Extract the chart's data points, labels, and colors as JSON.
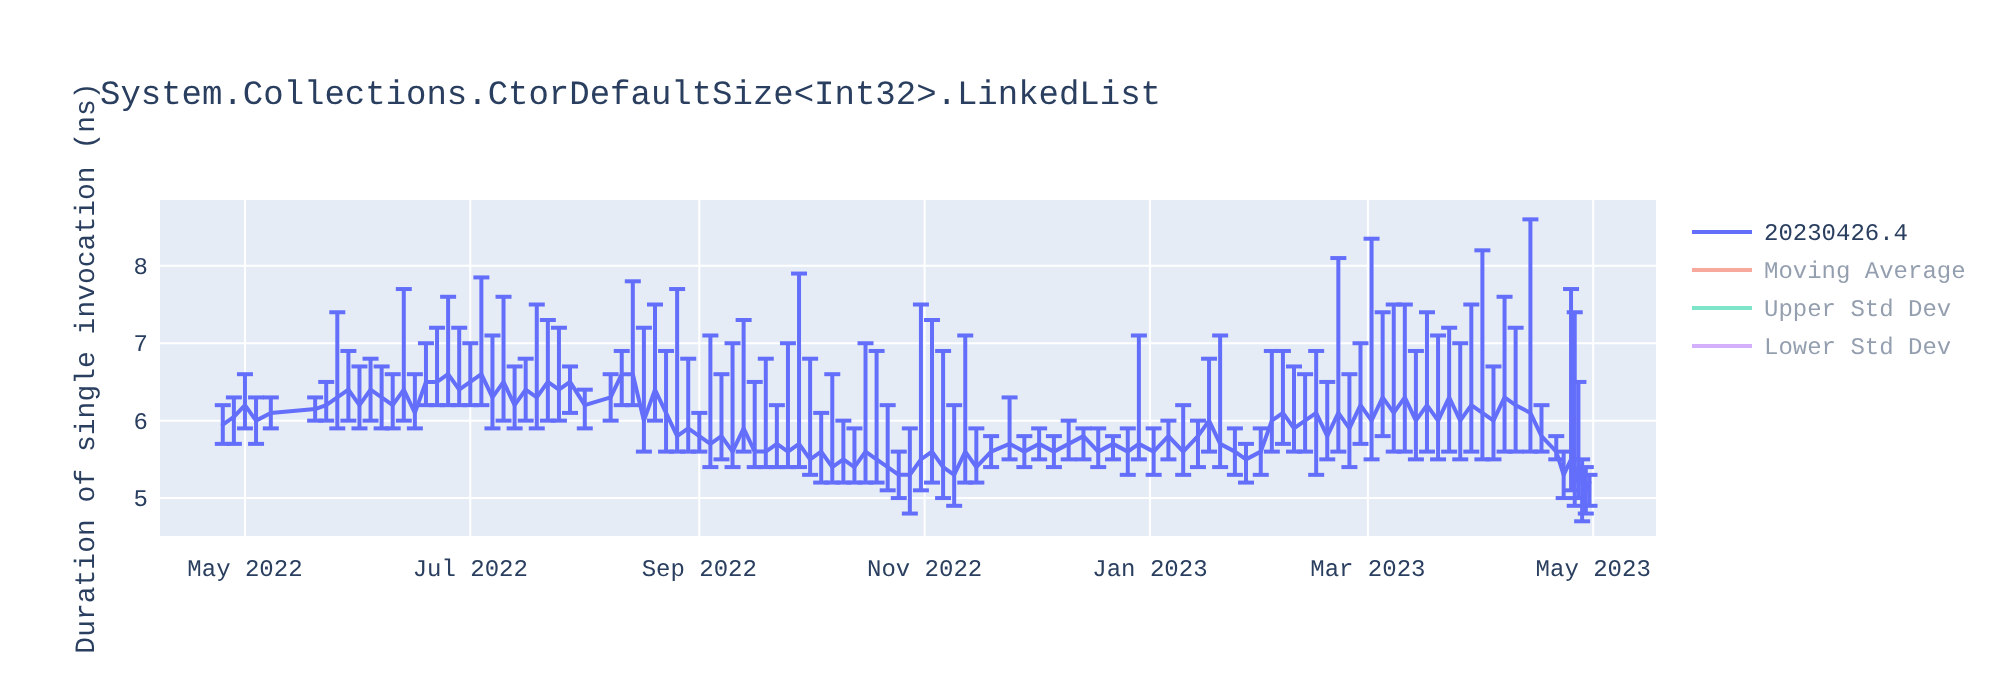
{
  "chart_data": {
    "type": "line",
    "title": "System.Collections.CtorDefaultSize<Int32>.LinkedList",
    "ylabel": "Duration of single invocation (ns)",
    "x": [
      "2022-04-25",
      "2022-04-28",
      "2022-05-01",
      "2022-05-04",
      "2022-05-08",
      "2022-05-20",
      "2022-05-23",
      "2022-05-26",
      "2022-05-29",
      "2022-06-01",
      "2022-06-04",
      "2022-06-07",
      "2022-06-10",
      "2022-06-13",
      "2022-06-16",
      "2022-06-19",
      "2022-06-22",
      "2022-06-25",
      "2022-06-28",
      "2022-07-01",
      "2022-07-04",
      "2022-07-07",
      "2022-07-10",
      "2022-07-13",
      "2022-07-16",
      "2022-07-19",
      "2022-07-22",
      "2022-07-25",
      "2022-07-28",
      "2022-08-01",
      "2022-08-08",
      "2022-08-11",
      "2022-08-14",
      "2022-08-17",
      "2022-08-20",
      "2022-08-23",
      "2022-08-26",
      "2022-08-29",
      "2022-09-01",
      "2022-09-04",
      "2022-09-07",
      "2022-09-10",
      "2022-09-13",
      "2022-09-16",
      "2022-09-19",
      "2022-09-22",
      "2022-09-25",
      "2022-09-28",
      "2022-10-01",
      "2022-10-04",
      "2022-10-07",
      "2022-10-10",
      "2022-10-13",
      "2022-10-16",
      "2022-10-19",
      "2022-10-22",
      "2022-10-25",
      "2022-10-28",
      "2022-10-31",
      "2022-11-03",
      "2022-11-06",
      "2022-11-09",
      "2022-11-12",
      "2022-11-15",
      "2022-11-19",
      "2022-11-24",
      "2022-11-28",
      "2022-12-02",
      "2022-12-06",
      "2022-12-10",
      "2022-12-14",
      "2022-12-18",
      "2022-12-22",
      "2022-12-26",
      "2022-12-29",
      "2023-01-02",
      "2023-01-06",
      "2023-01-10",
      "2023-01-14",
      "2023-01-17",
      "2023-01-20",
      "2023-01-24",
      "2023-01-27",
      "2023-01-31",
      "2023-02-03",
      "2023-02-06",
      "2023-02-09",
      "2023-02-12",
      "2023-02-15",
      "2023-02-18",
      "2023-02-21",
      "2023-02-24",
      "2023-02-27",
      "2023-03-02",
      "2023-03-05",
      "2023-03-08",
      "2023-03-11",
      "2023-03-14",
      "2023-03-17",
      "2023-03-20",
      "2023-03-23",
      "2023-03-26",
      "2023-03-29",
      "2023-04-01",
      "2023-04-04",
      "2023-04-07",
      "2023-04-10",
      "2023-04-14",
      "2023-04-17",
      "2023-04-21",
      "2023-04-23",
      "2023-04-25",
      "2023-04-26",
      "2023-04-27",
      "2023-04-28",
      "2023-04-29",
      "2023-04-30"
    ],
    "series": [
      {
        "name": "20230426.4",
        "color": "#636efa",
        "values": [
          5.95,
          6.05,
          6.2,
          6.0,
          6.1,
          6.15,
          6.2,
          6.3,
          6.4,
          6.2,
          6.4,
          6.3,
          6.2,
          6.4,
          6.1,
          6.5,
          6.5,
          6.6,
          6.4,
          6.5,
          6.6,
          6.3,
          6.5,
          6.2,
          6.4,
          6.3,
          6.5,
          6.4,
          6.5,
          6.2,
          6.3,
          6.6,
          6.6,
          6.0,
          6.4,
          6.1,
          5.8,
          5.9,
          5.8,
          5.7,
          5.8,
          5.6,
          5.9,
          5.6,
          5.6,
          5.7,
          5.6,
          5.7,
          5.5,
          5.6,
          5.4,
          5.5,
          5.4,
          5.6,
          5.5,
          5.4,
          5.3,
          5.3,
          5.5,
          5.6,
          5.4,
          5.3,
          5.6,
          5.4,
          5.6,
          5.7,
          5.6,
          5.7,
          5.6,
          5.7,
          5.8,
          5.6,
          5.7,
          5.6,
          5.7,
          5.6,
          5.8,
          5.6,
          5.8,
          6.0,
          5.7,
          5.6,
          5.5,
          5.6,
          6.0,
          6.1,
          5.9,
          6.0,
          6.1,
          5.8,
          6.1,
          5.9,
          6.2,
          6.0,
          6.3,
          6.1,
          6.3,
          6.0,
          6.2,
          6.0,
          6.3,
          6.0,
          6.2,
          6.1,
          6.0,
          6.3,
          6.2,
          6.1,
          5.8,
          5.6,
          5.3,
          5.5,
          5.2,
          5.4,
          5.2,
          5.1,
          5.2
        ],
        "errors": [
          [
            5.7,
            6.2
          ],
          [
            5.7,
            6.3
          ],
          [
            5.9,
            6.6
          ],
          [
            5.7,
            6.3
          ],
          [
            5.9,
            6.3
          ],
          [
            6.0,
            6.3
          ],
          [
            6.0,
            6.5
          ],
          [
            5.9,
            7.4
          ],
          [
            6.0,
            6.9
          ],
          [
            5.9,
            6.7
          ],
          [
            6.0,
            6.8
          ],
          [
            5.9,
            6.7
          ],
          [
            5.9,
            6.6
          ],
          [
            6.0,
            7.7
          ],
          [
            5.9,
            6.6
          ],
          [
            6.2,
            7.0
          ],
          [
            6.2,
            7.2
          ],
          [
            6.2,
            7.6
          ],
          [
            6.2,
            7.2
          ],
          [
            6.2,
            7.0
          ],
          [
            6.2,
            7.85
          ],
          [
            5.9,
            7.1
          ],
          [
            6.0,
            7.6
          ],
          [
            5.9,
            6.7
          ],
          [
            6.0,
            6.8
          ],
          [
            5.9,
            7.5
          ],
          [
            6.0,
            7.3
          ],
          [
            6.0,
            7.2
          ],
          [
            6.1,
            6.7
          ],
          [
            5.9,
            6.4
          ],
          [
            6.0,
            6.6
          ],
          [
            6.2,
            6.9
          ],
          [
            6.2,
            7.8
          ],
          [
            5.6,
            7.2
          ],
          [
            6.0,
            7.5
          ],
          [
            5.6,
            6.9
          ],
          [
            5.6,
            7.7
          ],
          [
            5.6,
            6.8
          ],
          [
            5.6,
            6.1
          ],
          [
            5.4,
            7.1
          ],
          [
            5.5,
            6.6
          ],
          [
            5.4,
            7.0
          ],
          [
            5.6,
            7.3
          ],
          [
            5.4,
            6.5
          ],
          [
            5.4,
            6.8
          ],
          [
            5.4,
            6.2
          ],
          [
            5.4,
            7.0
          ],
          [
            5.4,
            7.9
          ],
          [
            5.3,
            6.8
          ],
          [
            5.2,
            6.1
          ],
          [
            5.2,
            6.6
          ],
          [
            5.2,
            6.0
          ],
          [
            5.2,
            5.9
          ],
          [
            5.2,
            7.0
          ],
          [
            5.2,
            6.9
          ],
          [
            5.1,
            6.2
          ],
          [
            5.0,
            5.6
          ],
          [
            4.8,
            5.9
          ],
          [
            5.1,
            7.5
          ],
          [
            5.2,
            7.3
          ],
          [
            5.0,
            6.9
          ],
          [
            4.9,
            6.2
          ],
          [
            5.2,
            7.1
          ],
          [
            5.2,
            5.9
          ],
          [
            5.4,
            5.8
          ],
          [
            5.5,
            6.3
          ],
          [
            5.4,
            5.8
          ],
          [
            5.5,
            5.9
          ],
          [
            5.4,
            5.8
          ],
          [
            5.5,
            6.0
          ],
          [
            5.5,
            5.9
          ],
          [
            5.4,
            5.9
          ],
          [
            5.5,
            5.8
          ],
          [
            5.3,
            5.9
          ],
          [
            5.5,
            7.1
          ],
          [
            5.3,
            5.9
          ],
          [
            5.5,
            6.0
          ],
          [
            5.3,
            6.2
          ],
          [
            5.4,
            6.0
          ],
          [
            5.6,
            6.8
          ],
          [
            5.4,
            7.1
          ],
          [
            5.3,
            5.9
          ],
          [
            5.2,
            5.7
          ],
          [
            5.3,
            5.9
          ],
          [
            5.6,
            6.9
          ],
          [
            5.7,
            6.9
          ],
          [
            5.6,
            6.7
          ],
          [
            5.6,
            6.6
          ],
          [
            5.3,
            6.9
          ],
          [
            5.5,
            6.5
          ],
          [
            5.6,
            8.1
          ],
          [
            5.4,
            6.6
          ],
          [
            5.7,
            7.0
          ],
          [
            5.5,
            8.35
          ],
          [
            5.8,
            7.4
          ],
          [
            5.6,
            7.5
          ],
          [
            5.6,
            7.5
          ],
          [
            5.5,
            6.9
          ],
          [
            5.6,
            7.4
          ],
          [
            5.5,
            7.1
          ],
          [
            5.6,
            7.2
          ],
          [
            5.5,
            7.0
          ],
          [
            5.6,
            7.5
          ],
          [
            5.5,
            8.2
          ],
          [
            5.5,
            6.7
          ],
          [
            5.6,
            7.6
          ],
          [
            5.6,
            7.2
          ],
          [
            5.6,
            8.6
          ],
          [
            5.6,
            6.2
          ],
          [
            5.5,
            5.8
          ],
          [
            5.0,
            5.6
          ],
          [
            5.1,
            7.7
          ],
          [
            4.9,
            7.4
          ],
          [
            5.0,
            6.5
          ],
          [
            4.7,
            5.5
          ],
          [
            4.8,
            5.4
          ],
          [
            4.9,
            5.3
          ]
        ]
      },
      {
        "name": "Moving Average",
        "color": "#ef553b",
        "values": [
          null,
          null,
          null,
          null,
          null,
          null,
          null,
          null,
          null,
          null,
          null,
          null,
          null,
          null,
          null,
          null,
          null,
          null,
          null,
          null,
          null,
          null,
          null,
          null,
          null,
          null,
          null,
          null,
          null,
          null,
          null,
          null,
          null,
          null,
          null,
          null,
          null,
          null,
          null,
          null,
          null,
          null,
          null,
          null,
          null,
          null,
          null,
          null,
          null,
          null,
          null,
          null,
          null,
          null,
          null,
          null,
          null,
          null,
          null,
          null,
          null,
          null,
          null,
          null,
          null,
          null,
          null,
          null,
          null,
          null,
          null,
          null,
          null,
          null,
          null,
          null,
          null,
          null,
          null,
          null,
          null,
          null,
          null,
          null,
          null,
          null,
          null,
          null,
          null,
          null,
          null,
          null,
          null,
          null,
          null,
          null,
          null,
          null,
          null,
          null,
          null,
          null,
          null,
          null,
          null,
          null,
          null,
          null,
          null,
          null,
          null,
          null,
          null,
          null,
          null,
          null,
          null
        ]
      },
      {
        "name": "Upper Std Dev",
        "color": "#00cc96",
        "values": [
          null,
          null,
          null,
          null,
          null,
          null,
          null,
          null,
          null,
          null,
          null,
          null,
          null,
          null,
          null,
          null,
          null,
          null,
          null,
          null,
          null,
          null,
          null,
          null,
          null,
          null,
          null,
          null,
          null,
          null,
          null,
          null,
          null,
          null,
          null,
          null,
          null,
          null,
          null,
          null,
          null,
          null,
          null,
          null,
          null,
          null,
          null,
          null,
          null,
          null,
          null,
          null,
          null,
          null,
          null,
          null,
          null,
          null,
          null,
          null,
          null,
          null,
          null,
          null,
          null,
          null,
          null,
          null,
          null,
          null,
          null,
          null,
          null,
          null,
          null,
          null,
          null,
          null,
          null,
          null,
          null,
          null,
          null,
          null,
          null,
          null,
          null,
          null,
          null,
          null,
          null,
          null,
          null,
          null,
          null,
          null,
          null,
          null,
          null,
          null,
          null,
          null,
          null,
          null,
          null,
          null,
          null,
          null,
          null,
          null,
          null,
          null,
          null,
          null,
          null,
          null,
          null
        ]
      },
      {
        "name": "Lower Std Dev",
        "color": "#ab63fa",
        "values": [
          null,
          null,
          null,
          null,
          null,
          null,
          null,
          null,
          null,
          null,
          null,
          null,
          null,
          null,
          null,
          null,
          null,
          null,
          null,
          null,
          null,
          null,
          null,
          null,
          null,
          null,
          null,
          null,
          null,
          null,
          null,
          null,
          null,
          null,
          null,
          null,
          null,
          null,
          null,
          null,
          null,
          null,
          null,
          null,
          null,
          null,
          null,
          null,
          null,
          null,
          null,
          null,
          null,
          null,
          null,
          null,
          null,
          null,
          null,
          null,
          null,
          null,
          null,
          null,
          null,
          null,
          null,
          null,
          null,
          null,
          null,
          null,
          null,
          null,
          null,
          null,
          null,
          null,
          null,
          null,
          null,
          null,
          null,
          null,
          null,
          null,
          null,
          null,
          null,
          null,
          null,
          null,
          null,
          null,
          null,
          null,
          null,
          null,
          null,
          null,
          null,
          null,
          null,
          null,
          null,
          null,
          null,
          null,
          null,
          null,
          null,
          null,
          null,
          null,
          null,
          null,
          null
        ]
      }
    ],
    "xlim": [
      "2022-04-08",
      "2023-05-18"
    ],
    "xticks": [
      {
        "value": "2022-05-01",
        "label": "May 2022"
      },
      {
        "value": "2022-07-01",
        "label": "Jul 2022"
      },
      {
        "value": "2022-09-01",
        "label": "Sep 2022"
      },
      {
        "value": "2022-11-01",
        "label": "Nov 2022"
      },
      {
        "value": "2023-01-01",
        "label": "Jan 2023"
      },
      {
        "value": "2023-03-01",
        "label": "Mar 2023"
      },
      {
        "value": "2023-05-01",
        "label": "May 2023"
      }
    ],
    "ylim": [
      4.51,
      8.85
    ],
    "yticks": [
      5,
      6,
      7,
      8
    ],
    "grid": true,
    "legend": "right",
    "marker": "none",
    "line_style": "solid"
  }
}
